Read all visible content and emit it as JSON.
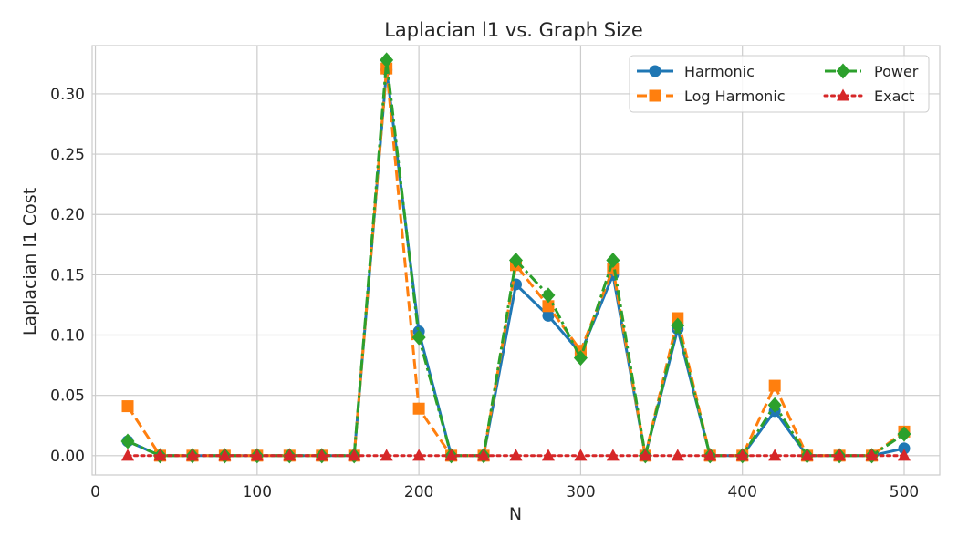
{
  "chart_data": {
    "type": "line",
    "title": "Laplacian l1 vs. Graph Size",
    "xlabel": "N",
    "ylabel": "Laplacian l1 Cost",
    "xlim": [
      -2,
      522
    ],
    "ylim": [
      -0.016,
      0.34
    ],
    "xticks": [
      0,
      100,
      200,
      300,
      400,
      500
    ],
    "yticks": [
      0.0,
      0.05,
      0.1,
      0.15,
      0.2,
      0.25,
      0.3
    ],
    "grid": true,
    "legend_position": "top-right",
    "legend_columns": 2,
    "x": [
      20,
      40,
      60,
      80,
      100,
      120,
      140,
      160,
      180,
      200,
      220,
      240,
      260,
      280,
      300,
      320,
      340,
      360,
      380,
      400,
      420,
      440,
      460,
      480,
      500
    ],
    "series": [
      {
        "name": "Harmonic",
        "color": "#1f77b4",
        "marker": "circle",
        "linestyle": "solid",
        "values": [
          0.012,
          0.0,
          0.0,
          0.0,
          0.0,
          0.0,
          0.0,
          0.0,
          0.32,
          0.103,
          0.0,
          0.0,
          0.142,
          0.116,
          0.085,
          0.15,
          0.0,
          0.105,
          0.0,
          0.0,
          0.037,
          0.0,
          0.0,
          0.0,
          0.006
        ]
      },
      {
        "name": "Log Harmonic",
        "color": "#ff7f0e",
        "marker": "square",
        "linestyle": "dashed",
        "values": [
          0.041,
          0.0,
          0.0,
          0.0,
          0.0,
          0.0,
          0.0,
          0.0,
          0.321,
          0.039,
          0.0,
          0.0,
          0.158,
          0.124,
          0.087,
          0.155,
          0.0,
          0.114,
          0.0,
          0.0,
          0.058,
          0.0,
          0.0,
          0.0,
          0.02
        ]
      },
      {
        "name": "Power",
        "color": "#2ca02c",
        "marker": "diamond",
        "linestyle": "dashdot",
        "values": [
          0.012,
          0.0,
          0.0,
          0.0,
          0.0,
          0.0,
          0.0,
          0.0,
          0.328,
          0.098,
          0.0,
          0.0,
          0.162,
          0.133,
          0.081,
          0.162,
          0.0,
          0.108,
          0.0,
          0.0,
          0.042,
          0.0,
          0.0,
          0.0,
          0.018
        ]
      },
      {
        "name": "Exact",
        "color": "#d62728",
        "marker": "triangle",
        "linestyle": "dotted",
        "values": [
          0.0,
          0.0,
          0.0,
          0.0,
          0.0,
          0.0,
          0.0,
          0.0,
          0.0,
          0.0,
          0.0,
          0.0,
          0.0,
          0.0,
          0.0,
          0.0,
          0.0,
          0.0,
          0.0,
          0.0,
          0.0,
          0.0,
          0.0,
          0.0,
          0.0
        ]
      }
    ]
  }
}
